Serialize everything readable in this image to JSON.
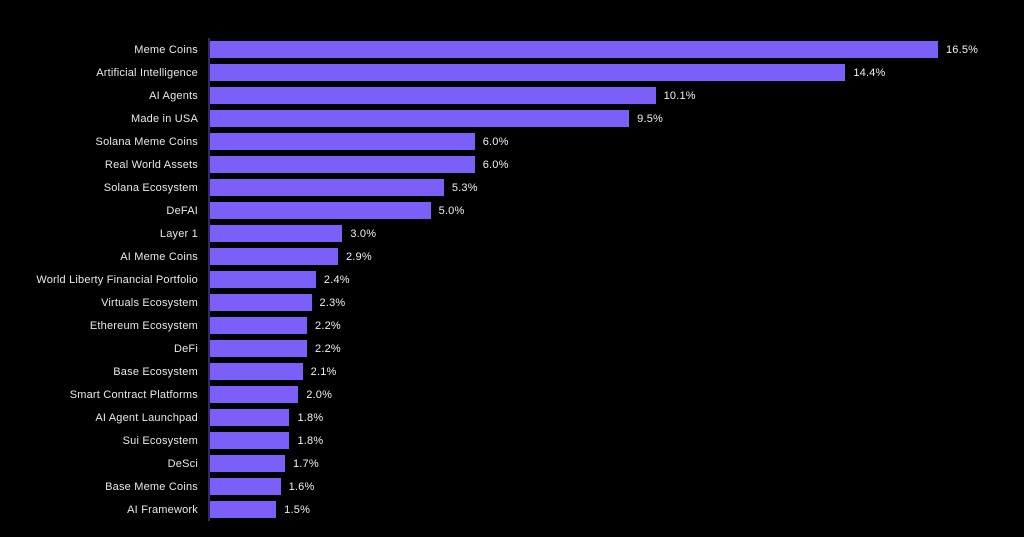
{
  "colors": {
    "background": "#000000",
    "bar": "#7c5ef8",
    "axis_line": "#32286b",
    "category_label": "#e8e8ec",
    "value_label": "#f0f0f4"
  },
  "chart_data": {
    "type": "bar",
    "orientation": "horizontal",
    "title": "",
    "xlabel": "",
    "ylabel": "",
    "grid": false,
    "legend": false,
    "xlim": [
      0,
      18.45
    ],
    "categories": [
      "Meme Coins",
      "Artificial Intelligence",
      "AI Agents",
      "Made in USA",
      "Solana Meme Coins",
      "Real World Assets",
      "Solana Ecosystem",
      "DeFAI",
      "Layer 1",
      "AI Meme Coins",
      "World Liberty Financial Portfolio",
      "Virtuals Ecosystem",
      "Ethereum Ecosystem",
      "DeFi",
      "Base Ecosystem",
      "Smart Contract Platforms",
      "AI Agent Launchpad",
      "Sui Ecosystem",
      "DeSci",
      "Base Meme Coins",
      "AI Framework"
    ],
    "values": [
      16.5,
      14.4,
      10.1,
      9.5,
      6.0,
      6.0,
      5.3,
      5.0,
      3.0,
      2.9,
      2.4,
      2.3,
      2.2,
      2.2,
      2.1,
      2.0,
      1.8,
      1.8,
      1.7,
      1.6,
      1.5
    ],
    "value_labels": [
      "16.5%",
      "14.4%",
      "10.1%",
      "9.5%",
      "6.0%",
      "6.0%",
      "5.3%",
      "5.0%",
      "3.0%",
      "2.9%",
      "2.4%",
      "2.3%",
      "2.2%",
      "2.2%",
      "2.1%",
      "2.0%",
      "1.8%",
      "1.8%",
      "1.7%",
      "1.6%",
      "1.5%"
    ]
  }
}
